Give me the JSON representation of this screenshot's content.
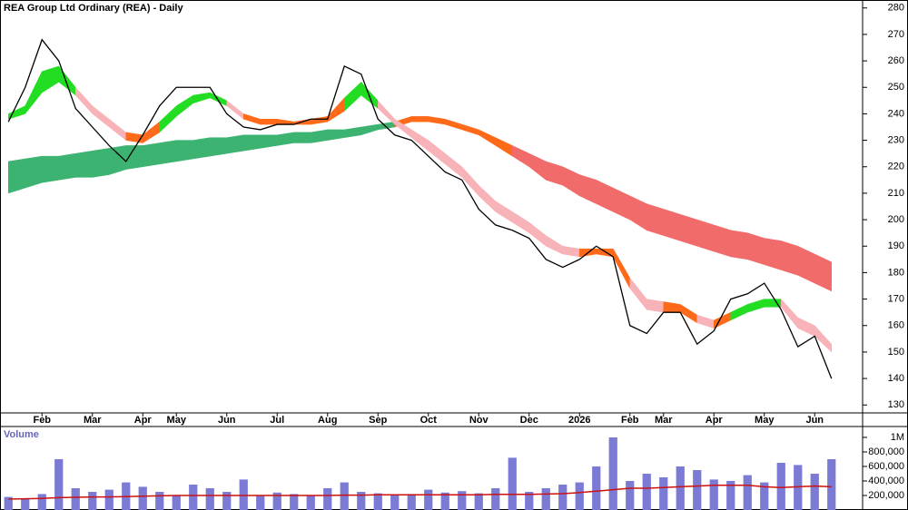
{
  "chart_data": [
    {
      "type": "line",
      "title": "REA Group Ltd Ordinary (REA) - Daily",
      "color": "#000000",
      "categories": [
        null,
        null,
        "Feb",
        null,
        null,
        "Mar",
        null,
        null,
        "Apr",
        null,
        "May",
        null,
        null,
        "Jun",
        null,
        null,
        "Jul",
        null,
        null,
        "Aug",
        null,
        null,
        "Sep",
        null,
        null,
        "Oct",
        null,
        null,
        "Nov",
        null,
        null,
        "Dec",
        null,
        null,
        "2026",
        null,
        null,
        "Feb",
        null,
        "Mar",
        null,
        null,
        "Apr",
        null,
        null,
        "May",
        null,
        null,
        "Jun",
        null
      ],
      "values": [
        237,
        250,
        268,
        260,
        242,
        235,
        228,
        222,
        232,
        243,
        250,
        250,
        250,
        240,
        235,
        234,
        236,
        236,
        238,
        238,
        258,
        255,
        238,
        232,
        230,
        224,
        218,
        215,
        204,
        198,
        196,
        193,
        185,
        182,
        185,
        190,
        186,
        160,
        157,
        165,
        165,
        153,
        158,
        170,
        172,
        176,
        166,
        152,
        156,
        140
      ],
      "short_band": {
        "upper": [
          240,
          243,
          256,
          258,
          250,
          243,
          238,
          233,
          232,
          237,
          243,
          247,
          248,
          245,
          240,
          238,
          238,
          237,
          238,
          239,
          246,
          252,
          245,
          238,
          234,
          230,
          225,
          220,
          213,
          207,
          203,
          199,
          194,
          190,
          189,
          189,
          189,
          178,
          170,
          169,
          168,
          164,
          162,
          165,
          168,
          170,
          170,
          163,
          160,
          153
        ],
        "lower": [
          238,
          240,
          248,
          252,
          247,
          240,
          235,
          230,
          229,
          233,
          239,
          244,
          246,
          243,
          238,
          236,
          236,
          236,
          236,
          237,
          241,
          247,
          242,
          236,
          231,
          226,
          221,
          216,
          209,
          203,
          199,
          195,
          190,
          187,
          186,
          187,
          186,
          174,
          166,
          165,
          165,
          161,
          159,
          162,
          165,
          167,
          167,
          159,
          156,
          150
        ],
        "colors": [
          "#22dd22",
          "#22dd22",
          "#22dd22",
          "#22dd22",
          "#f7b3b8",
          "#f7b3b8",
          "#f7b3b8",
          "#ff6a1a",
          "#ff6a1a",
          "#22dd22",
          "#22dd22",
          "#22dd22",
          "#22dd22",
          "#f7b3b8",
          "#ff6a1a",
          "#ff6a1a",
          "#ff6a1a",
          "#ff6a1a",
          "#ff6a1a",
          "#ff6a1a",
          "#22dd22",
          "#22dd22",
          "#f7b3b8",
          "#f7b3b8",
          "#f7b3b8",
          "#f7b3b8",
          "#f7b3b8",
          "#f7b3b8",
          "#f7b3b8",
          "#f7b3b8",
          "#f7b3b8",
          "#f7b3b8",
          "#f7b3b8",
          "#f7b3b8",
          "#ff6a1a",
          "#ff6a1a",
          "#ff6a1a",
          "#f7b3b8",
          "#f7b3b8",
          "#ff6a1a",
          "#ff6a1a",
          "#f7b3b8",
          "#ff6a1a",
          "#22dd22",
          "#22dd22",
          "#22dd22",
          "#f7b3b8",
          "#f7b3b8",
          "#f7b3b8",
          "#f7b3b8"
        ]
      },
      "long_band": {
        "upper": [
          222,
          223,
          224,
          224,
          225,
          226,
          227,
          228,
          228,
          229,
          230,
          230,
          231,
          231,
          232,
          232,
          232,
          233,
          233,
          234,
          234,
          235,
          236,
          237,
          239,
          239,
          238,
          236,
          234,
          231,
          228,
          225,
          222,
          220,
          217,
          215,
          212,
          209,
          206,
          204,
          202,
          200,
          198,
          196,
          195,
          193,
          192,
          190,
          187,
          184
        ],
        "lower": [
          210,
          212,
          214,
          215,
          216,
          216,
          217,
          219,
          220,
          221,
          222,
          223,
          224,
          225,
          226,
          227,
          228,
          229,
          229,
          230,
          231,
          232,
          234,
          235,
          237,
          237,
          236,
          234,
          232,
          228,
          224,
          220,
          215,
          213,
          209,
          206,
          203,
          200,
          196,
          194,
          192,
          190,
          188,
          186,
          185,
          183,
          181,
          179,
          176,
          173
        ],
        "colors": [
          "#3cb371",
          "#3cb371",
          "#3cb371",
          "#3cb371",
          "#3cb371",
          "#3cb371",
          "#3cb371",
          "#3cb371",
          "#3cb371",
          "#3cb371",
          "#3cb371",
          "#3cb371",
          "#3cb371",
          "#3cb371",
          "#3cb371",
          "#3cb371",
          "#3cb371",
          "#3cb371",
          "#3cb371",
          "#3cb371",
          "#3cb371",
          "#3cb371",
          "#3cb371",
          "#ff6a1a",
          "#ff6a1a",
          "#ff6a1a",
          "#ff6a1a",
          "#ff6a1a",
          "#ff6a1a",
          "#ff6a1a",
          "#f26b6b",
          "#f26b6b",
          "#f26b6b",
          "#f26b6b",
          "#f26b6b",
          "#f26b6b",
          "#f26b6b",
          "#f26b6b",
          "#f26b6b",
          "#f26b6b",
          "#f26b6b",
          "#f26b6b",
          "#f26b6b",
          "#f26b6b",
          "#f26b6b",
          "#f26b6b",
          "#f26b6b",
          "#f26b6b",
          "#f26b6b",
          "#f26b6b"
        ]
      },
      "ylim": [
        127,
        283
      ],
      "yticks": [
        130,
        140,
        150,
        160,
        170,
        180,
        190,
        200,
        210,
        220,
        230,
        240,
        250,
        260,
        270,
        280
      ]
    },
    {
      "type": "bar",
      "title": "Volume",
      "color": "#7b7bd6",
      "values": [
        180000,
        150000,
        220000,
        700000,
        300000,
        250000,
        280000,
        380000,
        320000,
        250000,
        200000,
        350000,
        300000,
        250000,
        420000,
        200000,
        240000,
        220000,
        200000,
        300000,
        380000,
        250000,
        230000,
        200000,
        220000,
        280000,
        240000,
        260000,
        230000,
        300000,
        720000,
        250000,
        300000,
        350000,
        380000,
        600000,
        1000000,
        400000,
        500000,
        450000,
        600000,
        550000,
        420000,
        400000,
        480000,
        380000,
        650000,
        620000,
        500000,
        700000
      ],
      "average": {
        "color": "#cc1111",
        "values": [
          150000,
          155000,
          160000,
          170000,
          175000,
          180000,
          180000,
          185000,
          190000,
          195000,
          200000,
          200000,
          200000,
          200000,
          200000,
          200000,
          200000,
          200000,
          200000,
          200000,
          205000,
          205000,
          210000,
          210000,
          210000,
          210000,
          210000,
          210000,
          210000,
          215000,
          215000,
          215000,
          220000,
          225000,
          240000,
          260000,
          280000,
          300000,
          300000,
          310000,
          320000,
          330000,
          340000,
          340000,
          340000,
          320000,
          310000,
          320000,
          330000,
          320000
        ]
      },
      "ylim": [
        0,
        1150000
      ],
      "yticks": [
        {
          "value": 200000,
          "label": "200,000"
        },
        {
          "value": 400000,
          "label": "400,000"
        },
        {
          "value": 600000,
          "label": "600,000"
        },
        {
          "value": 800000,
          "label": "800,000"
        },
        {
          "value": 1000000,
          "label": "1M"
        }
      ]
    }
  ]
}
